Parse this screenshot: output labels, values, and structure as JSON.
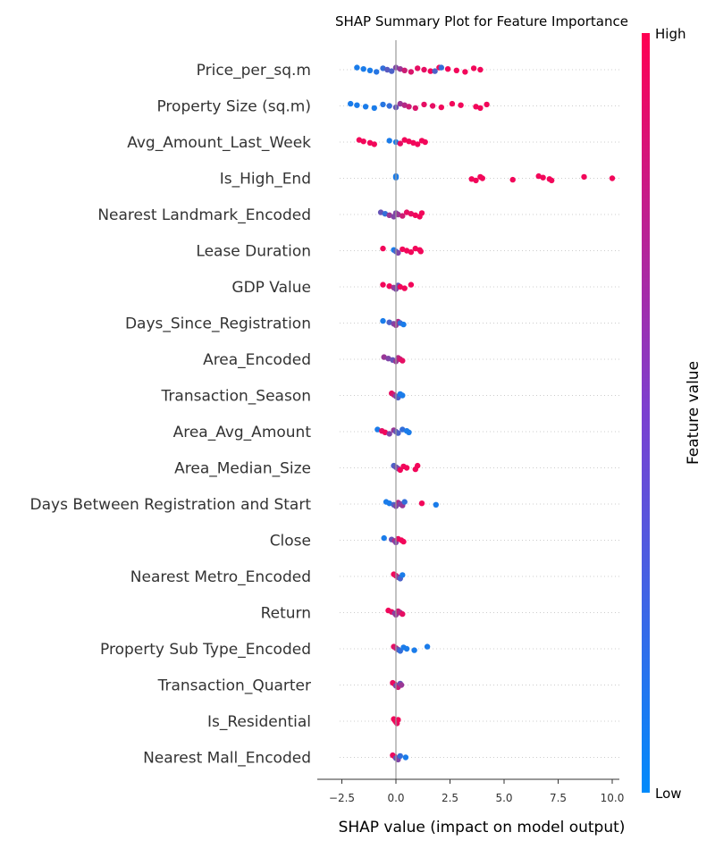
{
  "chart_data": {
    "type": "scatter",
    "title": "SHAP Summary Plot for Feature Importance",
    "xlabel": "SHAP value (impact on model output)",
    "ylabel": "",
    "xlim": [
      -2.55,
      10.2
    ],
    "xticks": [
      -2.5,
      0.0,
      2.5,
      5.0,
      7.5,
      10.0
    ],
    "xtick_labels": [
      "−2.5",
      "0.0",
      "2.5",
      "5.0",
      "7.5",
      "10.0"
    ],
    "colorbar": {
      "label": "Feature value",
      "high_label": "High",
      "low_label": "Low",
      "low_color": "#008afb",
      "high_color": "#ff0052"
    },
    "features": [
      {
        "name": "Price_per_sq.m",
        "points": [
          [
            -1.8,
            0.1
          ],
          [
            -1.5,
            0.1
          ],
          [
            -1.2,
            0.1
          ],
          [
            -0.9,
            0.15
          ],
          [
            -0.6,
            0.2
          ],
          [
            -0.4,
            0.35
          ],
          [
            -0.2,
            0.3
          ],
          [
            0.0,
            0.5
          ],
          [
            0.2,
            0.6
          ],
          [
            0.4,
            0.8
          ],
          [
            0.7,
            0.85
          ],
          [
            1.0,
            0.9
          ],
          [
            1.3,
            0.9
          ],
          [
            1.6,
            0.95
          ],
          [
            2.0,
            0.95
          ],
          [
            2.4,
            0.95
          ],
          [
            2.8,
            0.95
          ],
          [
            3.2,
            0.95
          ],
          [
            3.6,
            0.95
          ],
          [
            3.9,
            0.95
          ],
          [
            1.8,
            0.3
          ],
          [
            2.1,
            0.2
          ]
        ]
      },
      {
        "name": "Property Size (sq.m)",
        "points": [
          [
            -2.1,
            0.1
          ],
          [
            -1.8,
            0.1
          ],
          [
            -1.4,
            0.1
          ],
          [
            -1.0,
            0.1
          ],
          [
            -0.6,
            0.15
          ],
          [
            -0.3,
            0.2
          ],
          [
            0.0,
            0.4
          ],
          [
            0.2,
            0.6
          ],
          [
            0.4,
            0.7
          ],
          [
            0.6,
            0.8
          ],
          [
            0.9,
            0.85
          ],
          [
            1.3,
            0.9
          ],
          [
            1.7,
            0.9
          ],
          [
            2.1,
            0.95
          ],
          [
            2.6,
            0.95
          ],
          [
            3.0,
            0.95
          ],
          [
            3.7,
            0.95
          ],
          [
            3.9,
            0.95
          ],
          [
            4.2,
            0.95
          ]
        ]
      },
      {
        "name": "Avg_Amount_Last_Week",
        "points": [
          [
            -1.7,
            0.95
          ],
          [
            -1.5,
            0.95
          ],
          [
            -1.2,
            0.95
          ],
          [
            -1.0,
            0.95
          ],
          [
            -0.3,
            0.1
          ],
          [
            0.0,
            0.1
          ],
          [
            0.2,
            0.9
          ],
          [
            0.4,
            0.95
          ],
          [
            0.6,
            0.95
          ],
          [
            0.8,
            0.95
          ],
          [
            1.0,
            0.95
          ],
          [
            1.2,
            0.95
          ],
          [
            1.35,
            0.95
          ]
        ]
      },
      {
        "name": "Is_High_End",
        "points": [
          [
            0.0,
            0.1
          ],
          [
            0.0,
            0.1
          ],
          [
            3.5,
            0.95
          ],
          [
            3.7,
            0.95
          ],
          [
            3.9,
            0.95
          ],
          [
            4.0,
            0.95
          ],
          [
            5.4,
            0.95
          ],
          [
            6.6,
            0.95
          ],
          [
            6.8,
            0.95
          ],
          [
            7.1,
            0.95
          ],
          [
            7.2,
            0.95
          ],
          [
            8.7,
            0.95
          ],
          [
            10.0,
            0.95
          ]
        ]
      },
      {
        "name": "Nearest Landmark_Encoded",
        "points": [
          [
            -0.7,
            0.4
          ],
          [
            -0.5,
            0.2
          ],
          [
            -0.3,
            0.6
          ],
          [
            -0.1,
            0.5
          ],
          [
            0.0,
            0.5
          ],
          [
            0.1,
            0.6
          ],
          [
            0.3,
            0.8
          ],
          [
            0.5,
            0.9
          ],
          [
            0.7,
            0.9
          ],
          [
            0.9,
            0.95
          ],
          [
            1.1,
            0.95
          ],
          [
            1.2,
            0.95
          ]
        ]
      },
      {
        "name": "Lease Duration",
        "points": [
          [
            -0.6,
            0.95
          ],
          [
            -0.1,
            0.1
          ],
          [
            0.0,
            0.3
          ],
          [
            0.1,
            0.5
          ],
          [
            0.3,
            0.95
          ],
          [
            0.5,
            0.95
          ],
          [
            0.7,
            0.95
          ],
          [
            0.9,
            0.95
          ],
          [
            1.1,
            0.95
          ],
          [
            1.15,
            0.95
          ]
        ]
      },
      {
        "name": "GDP Value",
        "points": [
          [
            -0.6,
            0.95
          ],
          [
            -0.3,
            0.95
          ],
          [
            -0.1,
            0.6
          ],
          [
            0.0,
            0.5
          ],
          [
            0.1,
            0.4
          ],
          [
            0.2,
            0.95
          ],
          [
            0.4,
            0.95
          ],
          [
            0.7,
            0.95
          ]
        ]
      },
      {
        "name": "Days_Since_Registration",
        "points": [
          [
            -0.6,
            0.1
          ],
          [
            -0.3,
            0.3
          ],
          [
            -0.1,
            0.5
          ],
          [
            0.0,
            0.6
          ],
          [
            0.1,
            0.7
          ],
          [
            0.2,
            0.2
          ],
          [
            0.35,
            0.1
          ]
        ]
      },
      {
        "name": "Area_Encoded",
        "points": [
          [
            -0.55,
            0.6
          ],
          [
            -0.35,
            0.5
          ],
          [
            -0.15,
            0.4
          ],
          [
            0.0,
            0.6
          ],
          [
            0.1,
            0.7
          ],
          [
            0.2,
            0.8
          ],
          [
            0.3,
            0.9
          ]
        ]
      },
      {
        "name": "Transaction_Season",
        "points": [
          [
            -0.2,
            0.9
          ],
          [
            -0.1,
            0.8
          ],
          [
            0.0,
            0.5
          ],
          [
            0.1,
            0.3
          ],
          [
            0.2,
            0.1
          ],
          [
            0.3,
            0.1
          ]
        ]
      },
      {
        "name": "Area_Avg_Amount",
        "points": [
          [
            -0.85,
            0.1
          ],
          [
            -0.65,
            0.9
          ],
          [
            -0.5,
            0.95
          ],
          [
            -0.3,
            0.5
          ],
          [
            -0.1,
            0.6
          ],
          [
            0.0,
            0.4
          ],
          [
            0.1,
            0.3
          ],
          [
            0.3,
            0.2
          ],
          [
            0.5,
            0.1
          ],
          [
            0.6,
            0.1
          ]
        ]
      },
      {
        "name": "Area_Median_Size",
        "points": [
          [
            -0.1,
            0.3
          ],
          [
            0.0,
            0.4
          ],
          [
            0.1,
            0.5
          ],
          [
            0.2,
            0.95
          ],
          [
            0.35,
            0.95
          ],
          [
            0.5,
            0.95
          ],
          [
            0.9,
            0.95
          ],
          [
            1.0,
            0.95
          ]
        ]
      },
      {
        "name": "Days Between Registration and Start",
        "points": [
          [
            -0.45,
            0.1
          ],
          [
            -0.3,
            0.1
          ],
          [
            -0.1,
            0.3
          ],
          [
            0.0,
            0.5
          ],
          [
            0.1,
            0.7
          ],
          [
            0.2,
            0.5
          ],
          [
            0.3,
            0.6
          ],
          [
            0.4,
            0.2
          ],
          [
            1.2,
            0.95
          ],
          [
            1.85,
            0.1
          ]
        ]
      },
      {
        "name": "Close",
        "points": [
          [
            -0.55,
            0.1
          ],
          [
            -0.2,
            0.4
          ],
          [
            -0.05,
            0.7
          ],
          [
            0.0,
            0.5
          ],
          [
            0.1,
            0.9
          ],
          [
            0.25,
            0.95
          ],
          [
            0.35,
            0.95
          ]
        ]
      },
      {
        "name": "Nearest Metro_Encoded",
        "points": [
          [
            -0.1,
            0.95
          ],
          [
            0.0,
            0.9
          ],
          [
            0.1,
            0.6
          ],
          [
            0.2,
            0.3
          ],
          [
            0.3,
            0.1
          ]
        ]
      },
      {
        "name": "Return",
        "points": [
          [
            -0.35,
            0.95
          ],
          [
            -0.2,
            0.9
          ],
          [
            -0.05,
            0.5
          ],
          [
            0.0,
            0.6
          ],
          [
            0.1,
            0.8
          ],
          [
            0.2,
            0.7
          ],
          [
            0.3,
            0.9
          ]
        ]
      },
      {
        "name": "Property Sub Type_Encoded",
        "points": [
          [
            -0.1,
            0.9
          ],
          [
            0.0,
            0.8
          ],
          [
            0.1,
            0.4
          ],
          [
            0.2,
            0.2
          ],
          [
            0.35,
            0.1
          ],
          [
            0.5,
            0.1
          ],
          [
            0.85,
            0.1
          ],
          [
            1.45,
            0.1
          ]
        ]
      },
      {
        "name": "Transaction_Quarter",
        "points": [
          [
            -0.15,
            0.9
          ],
          [
            -0.05,
            0.95
          ],
          [
            0.0,
            0.5
          ],
          [
            0.1,
            0.8
          ],
          [
            0.2,
            0.4
          ],
          [
            0.25,
            0.6
          ]
        ]
      },
      {
        "name": "Is_Residential",
        "points": [
          [
            -0.1,
            0.95
          ],
          [
            -0.05,
            0.95
          ],
          [
            0.0,
            0.95
          ],
          [
            0.05,
            0.9
          ],
          [
            0.1,
            0.95
          ]
        ]
      },
      {
        "name": "Nearest Mall_Encoded",
        "points": [
          [
            -0.15,
            0.9
          ],
          [
            -0.05,
            0.95
          ],
          [
            0.0,
            0.4
          ],
          [
            0.1,
            0.5
          ],
          [
            0.2,
            0.2
          ],
          [
            0.45,
            0.1
          ]
        ]
      }
    ]
  }
}
